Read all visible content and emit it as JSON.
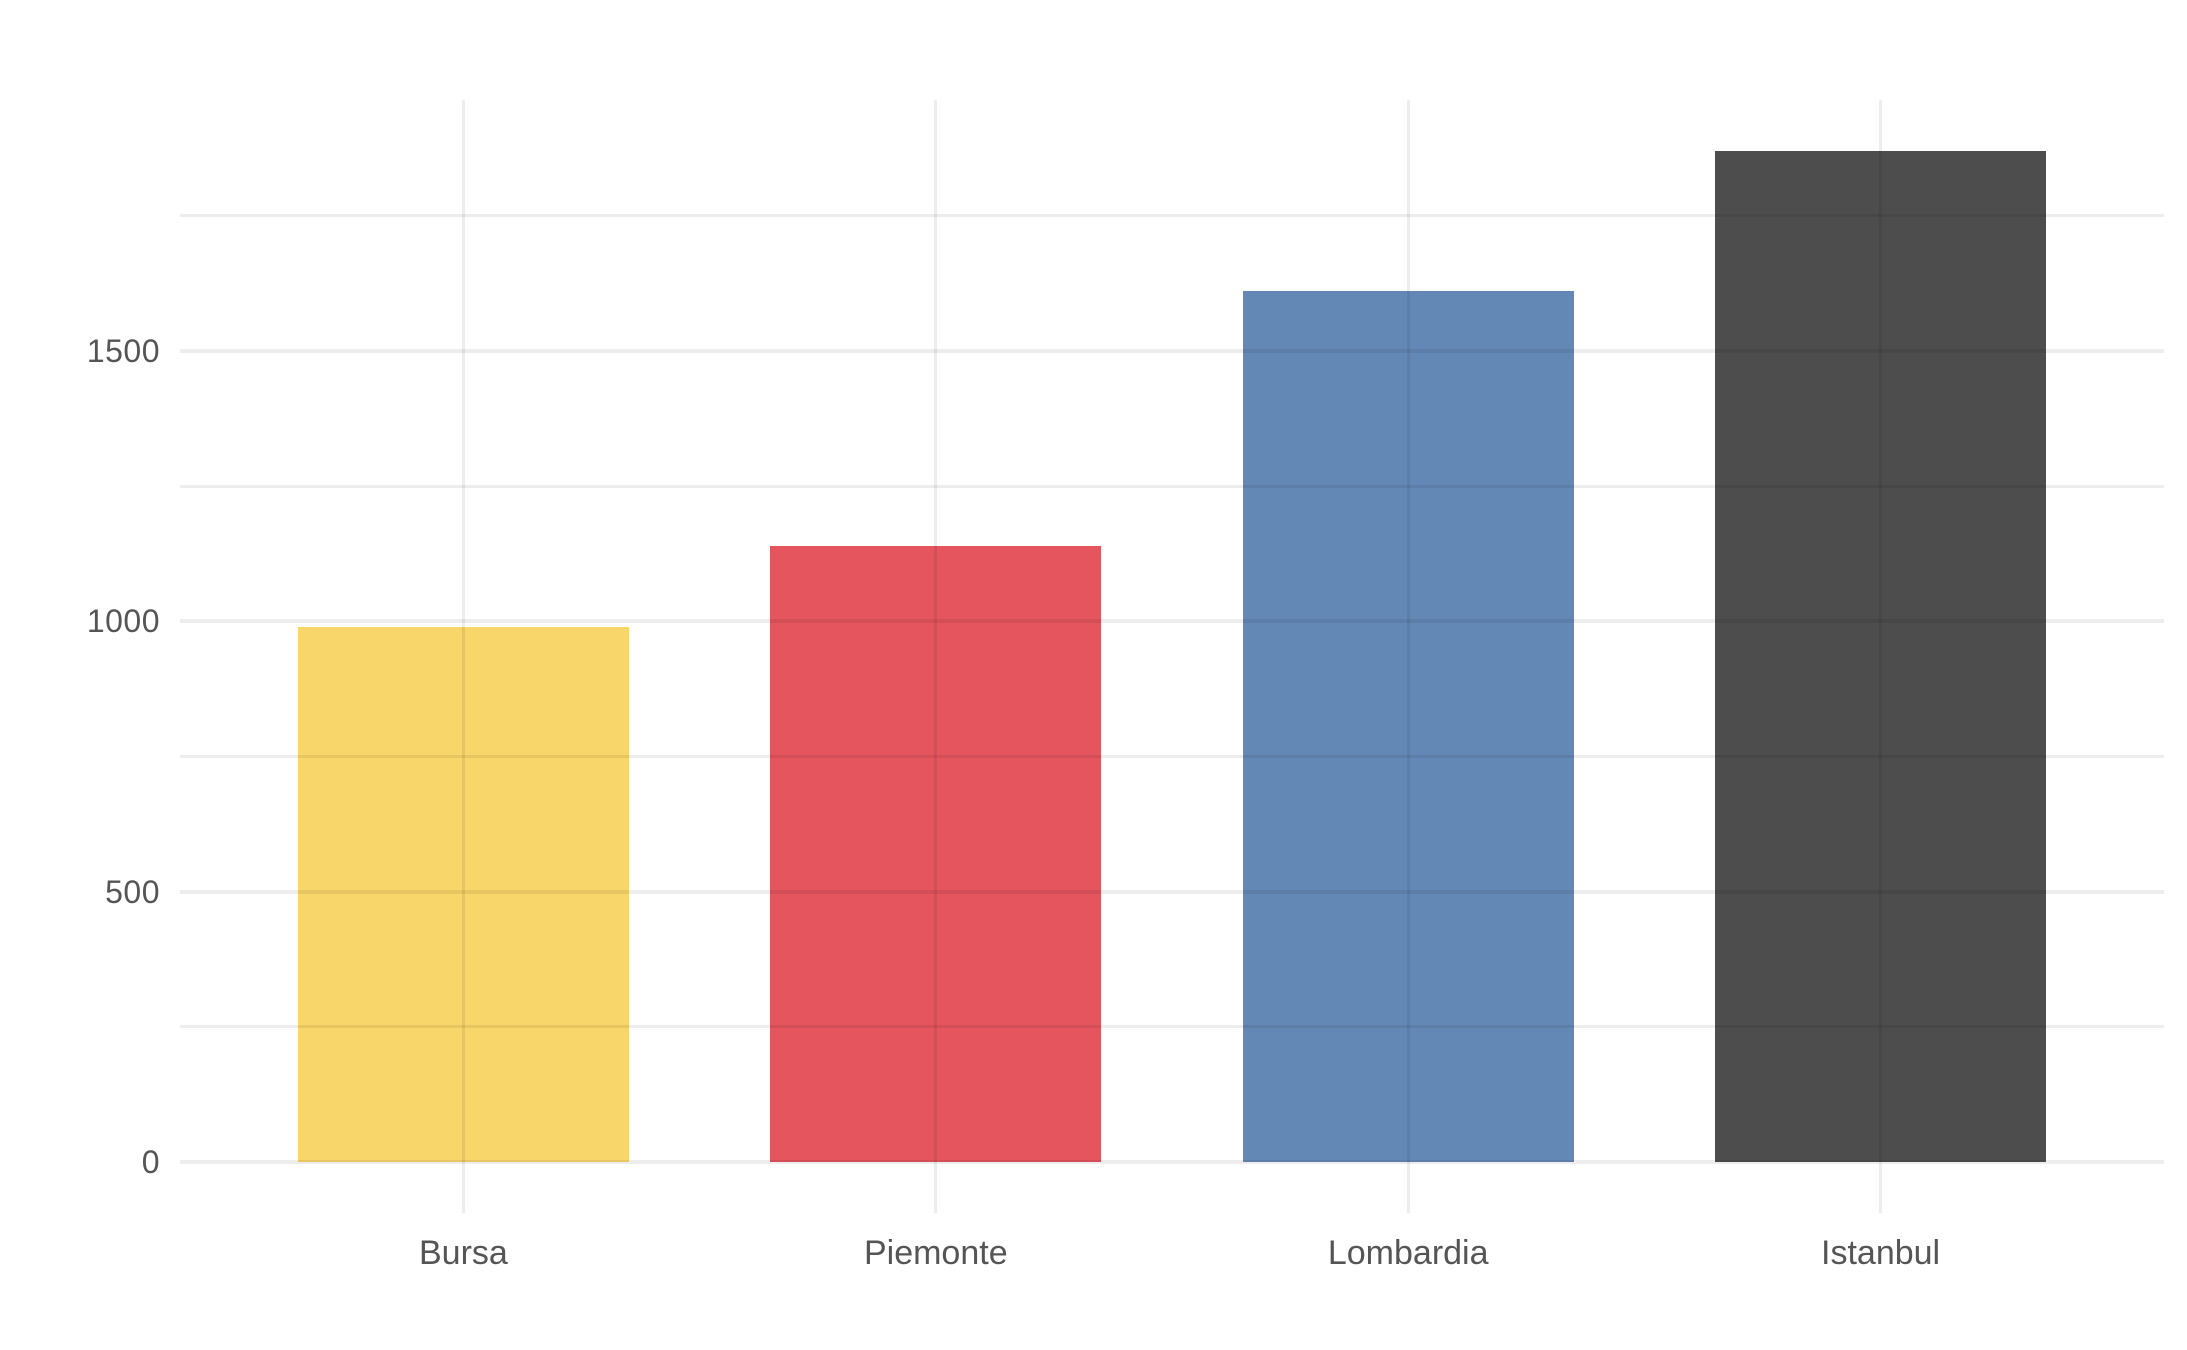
{
  "chart_data": {
    "type": "bar",
    "title": "",
    "xlabel": "",
    "ylabel": "",
    "categories": [
      "Bursa",
      "Piemonte",
      "Lombardia",
      "Istanbul"
    ],
    "values": [
      990,
      1140,
      1610,
      1870
    ],
    "bar_colors": [
      "#F9D66A",
      "#E4555E",
      "#6388B5",
      "#4D4D4D"
    ],
    "y_major_ticks": [
      0,
      500,
      1000,
      1500
    ],
    "y_tick_labels": [
      "0",
      "500",
      "1000",
      "1500"
    ],
    "y_minor_ticks": [
      250,
      750,
      1250,
      1750
    ],
    "ylim": [
      -94,
      1964
    ],
    "grid": "on",
    "legend": "none",
    "background_color": "#FFFFFF",
    "gridline_color": "#ECECEC",
    "tick_label_color": "#555555"
  }
}
